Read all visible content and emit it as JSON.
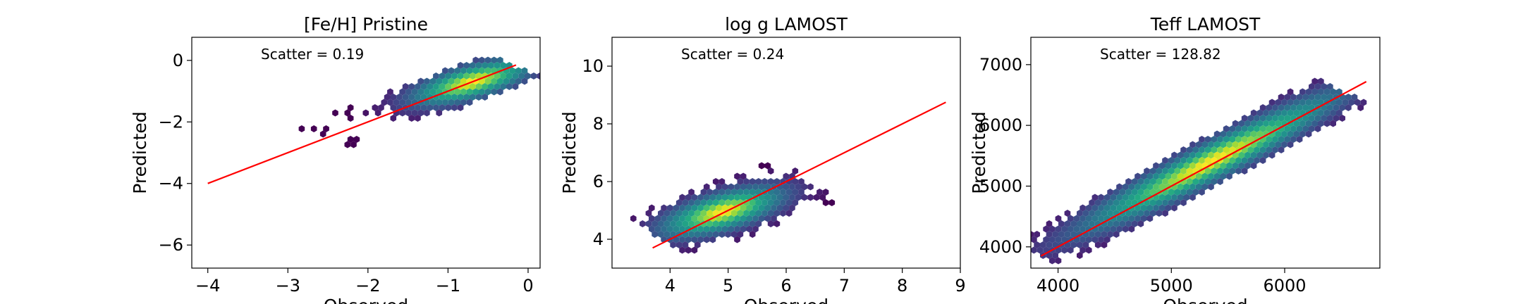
{
  "chart_data": [
    {
      "type": "scatter",
      "title": "[Fe/H] Pristine",
      "xlabel": "Observed",
      "ylabel": "Predicted",
      "xlim": [
        -4.2,
        0.15
      ],
      "ylim": [
        -6.75,
        0.75
      ],
      "xticks": [
        -4,
        -3,
        -2,
        -1,
        0
      ],
      "xtick_labels": [
        "−4",
        "−3",
        "−2",
        "−1",
        "0"
      ],
      "yticks": [
        -6,
        -4,
        -2,
        0
      ],
      "ytick_labels": [
        "−6",
        "−4",
        "−2",
        "0"
      ],
      "annotation": "Scatter = 0.19",
      "fit_line": {
        "x": [
          -4,
          -0.15
        ],
        "y": [
          -4,
          -0.15
        ],
        "color": "#ff0000"
      },
      "hexbin": {
        "center": [
          -0.7,
          -0.7
        ],
        "direction": [
          0.707,
          0.707
        ],
        "sigma_along": 0.55,
        "sigma_across": 0.24,
        "extent_along": [
          -2.6,
          0.75
        ],
        "extent_across": 0.5,
        "min_density": 0.05,
        "cell_size": 0.07
      }
    },
    {
      "type": "scatter",
      "title": "log g LAMOST",
      "xlabel": "Observed",
      "ylabel": "Predicted",
      "xlim": [
        3.0,
        9.0
      ],
      "ylim": [
        3.0,
        11.0
      ],
      "xticks": [
        4,
        5,
        6,
        7,
        8,
        9
      ],
      "xtick_labels": [
        "4",
        "5",
        "6",
        "7",
        "8",
        "9"
      ],
      "yticks": [
        4,
        6,
        8,
        10
      ],
      "ytick_labels": [
        "4",
        "6",
        "8",
        "10"
      ],
      "annotation": "Scatter = 0.24",
      "fit_line": {
        "x": [
          3.7,
          8.75
        ],
        "y": [
          3.7,
          8.75
        ],
        "color": "#ff0000"
      },
      "hexbin": {
        "center": [
          4.9,
          4.95
        ],
        "direction": [
          0.8,
          0.6
        ],
        "sigma_along": 0.7,
        "sigma_across": 0.32,
        "extent_along": [
          -1.4,
          1.9
        ],
        "extent_across": 0.95,
        "min_density": 0.05,
        "cell_size": 0.09
      }
    },
    {
      "type": "scatter",
      "title": "Teff LAMOST",
      "xlabel": "Observed",
      "ylabel": "Predicted",
      "xlim": [
        3760,
        6840
      ],
      "ylim": [
        3650,
        7450
      ],
      "xticks": [
        4000,
        5000,
        6000
      ],
      "xtick_labels": [
        "4000",
        "5000",
        "6000"
      ],
      "yticks": [
        4000,
        5000,
        6000,
        7000
      ],
      "ytick_labels": [
        "4000",
        "5000",
        "6000",
        "7000"
      ],
      "annotation": "Scatter = 128.82",
      "fit_line": {
        "x": [
          3850,
          6720
        ],
        "y": [
          3850,
          6720
        ],
        "color": "#ff0000"
      },
      "hexbin": {
        "center": [
          5350,
          5400
        ],
        "direction": [
          0.707,
          0.707
        ],
        "sigma_along": 900,
        "sigma_across": 140,
        "extent_along": [
          -2150,
          1650
        ],
        "extent_across": 320,
        "min_density": 0.05,
        "cell_size": 40
      }
    }
  ]
}
